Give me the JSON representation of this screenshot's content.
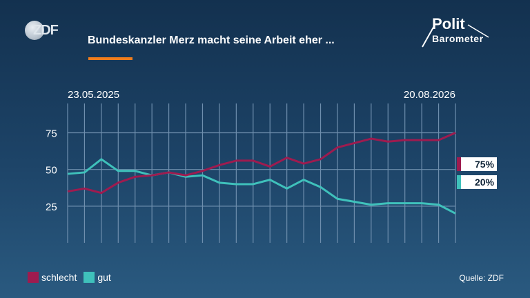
{
  "header": {
    "broadcaster": "ZDF",
    "title": "Bundeskanzler Merz macht seine Arbeit eher ...",
    "brand_line1": "Polit",
    "brand_line2": "Barometer"
  },
  "footer": {
    "source": "Quelle: ZDF"
  },
  "colors": {
    "schlecht": "#9e1b4f",
    "gut": "#3fc1bb",
    "accent": "#f07d1c"
  },
  "chart_data": {
    "type": "line",
    "title": "Bundeskanzler Merz macht seine Arbeit eher ...",
    "x_start_label": "23.05.2025",
    "x_end_label": "20.08.2026",
    "yticks": [
      25,
      50,
      75
    ],
    "ylim": [
      0,
      95
    ],
    "grid": true,
    "legend": "bottom-left",
    "series": [
      {
        "name": "schlecht",
        "color": "#9e1b4f",
        "values": [
          35,
          37,
          34,
          41,
          45,
          46,
          48,
          46,
          49,
          53,
          56,
          56,
          52,
          58,
          54,
          57,
          65,
          68,
          71,
          69,
          70,
          70,
          70,
          75
        ],
        "end_label": "75%"
      },
      {
        "name": "gut",
        "color": "#3fc1bb",
        "values": [
          47,
          48,
          57,
          49,
          49,
          46,
          48,
          45,
          46,
          41,
          40,
          40,
          43,
          37,
          43,
          38,
          30,
          28,
          26,
          27,
          27,
          27,
          26,
          20
        ],
        "end_label": "20%"
      }
    ]
  }
}
